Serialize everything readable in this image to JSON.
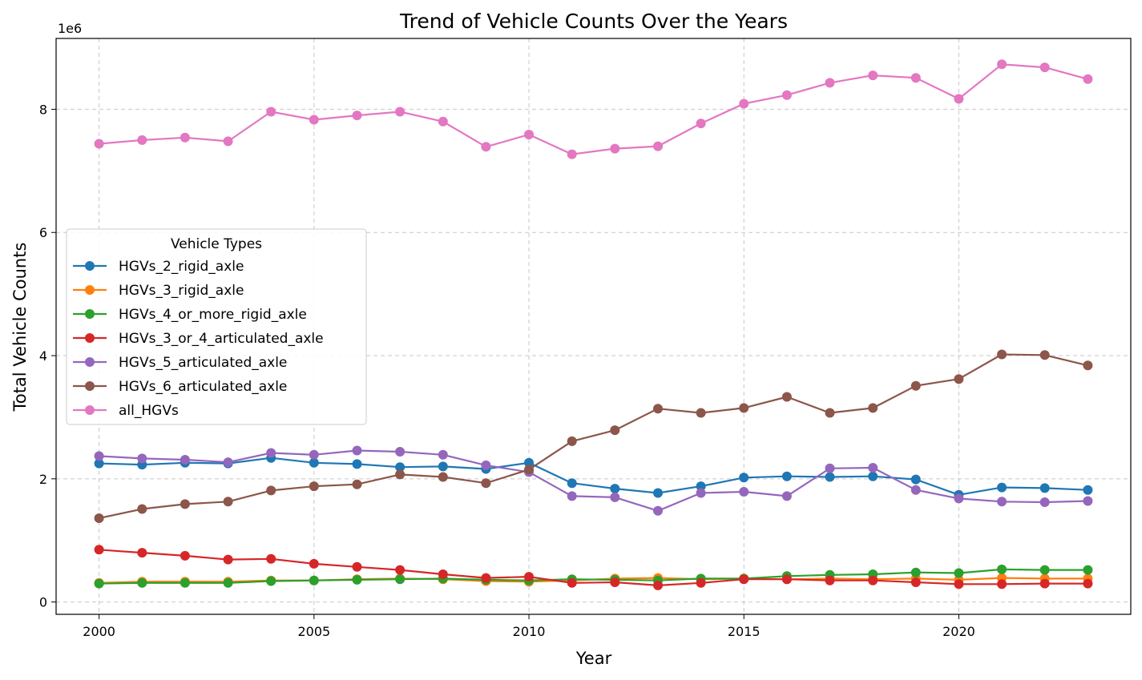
{
  "chart_data": {
    "type": "line",
    "title": "Trend of Vehicle Counts Over the Years",
    "xlabel": "Year",
    "ylabel": "Total Vehicle Counts",
    "y_offset_label": "1e6",
    "xlim": [
      1999,
      2024
    ],
    "ylim": [
      -200000,
      9150000
    ],
    "x_ticks": [
      2000,
      2005,
      2010,
      2015,
      2020
    ],
    "y_ticks": [
      0,
      2000000,
      4000000,
      6000000,
      8000000
    ],
    "y_tick_labels": [
      "0",
      "2",
      "4",
      "6",
      "8"
    ],
    "grid": true,
    "legend_title": "Vehicle Types",
    "legend_position": "center-left",
    "x": [
      2000,
      2001,
      2002,
      2003,
      2004,
      2005,
      2006,
      2007,
      2008,
      2009,
      2010,
      2011,
      2012,
      2013,
      2014,
      2015,
      2016,
      2017,
      2018,
      2019,
      2020,
      2021,
      2022,
      2023
    ],
    "series": [
      {
        "name": "HGVs_2_rigid_axle",
        "color": "#1f77b4",
        "values": [
          2250000,
          2230000,
          2260000,
          2250000,
          2340000,
          2260000,
          2240000,
          2190000,
          2200000,
          2160000,
          2260000,
          1930000,
          1840000,
          1770000,
          1880000,
          2020000,
          2040000,
          2030000,
          2040000,
          1990000,
          1740000,
          1860000,
          1850000,
          1820000
        ]
      },
      {
        "name": "HGVs_3_rigid_axle",
        "color": "#ff7f0e",
        "values": [
          310000,
          330000,
          330000,
          330000,
          350000,
          350000,
          370000,
          380000,
          370000,
          340000,
          330000,
          350000,
          380000,
          390000,
          370000,
          380000,
          370000,
          380000,
          370000,
          380000,
          360000,
          390000,
          380000,
          380000
        ]
      },
      {
        "name": "HGVs_4_or_more_rigid_axle",
        "color": "#2ca02c",
        "values": [
          300000,
          310000,
          310000,
          310000,
          340000,
          350000,
          360000,
          370000,
          380000,
          360000,
          350000,
          370000,
          360000,
          350000,
          380000,
          380000,
          420000,
          440000,
          450000,
          480000,
          470000,
          530000,
          520000,
          520000
        ]
      },
      {
        "name": "HGVs_3_or_4_articulated_axle",
        "color": "#d62728",
        "values": [
          850000,
          800000,
          750000,
          690000,
          700000,
          620000,
          570000,
          520000,
          450000,
          390000,
          410000,
          310000,
          320000,
          270000,
          310000,
          370000,
          370000,
          350000,
          350000,
          320000,
          290000,
          290000,
          300000,
          300000
        ]
      },
      {
        "name": "HGVs_5_articulated_axle",
        "color": "#9467bd",
        "values": [
          2370000,
          2330000,
          2310000,
          2270000,
          2420000,
          2390000,
          2460000,
          2440000,
          2390000,
          2220000,
          2110000,
          1720000,
          1700000,
          1480000,
          1770000,
          1790000,
          1720000,
          2170000,
          2180000,
          1820000,
          1680000,
          1630000,
          1620000,
          1640000
        ]
      },
      {
        "name": "HGVs_6_articulated_axle",
        "color": "#8c564b",
        "values": [
          1360000,
          1510000,
          1590000,
          1630000,
          1810000,
          1880000,
          1910000,
          2070000,
          2030000,
          1930000,
          2150000,
          2610000,
          2790000,
          3140000,
          3070000,
          3150000,
          3330000,
          3070000,
          3150000,
          3510000,
          3620000,
          4020000,
          4010000,
          3840000
        ]
      },
      {
        "name": "all_HGVs",
        "color": "#e377c2",
        "values": [
          7440000,
          7500000,
          7540000,
          7480000,
          7960000,
          7830000,
          7900000,
          7960000,
          7800000,
          7390000,
          7590000,
          7270000,
          7360000,
          7400000,
          7770000,
          8090000,
          8230000,
          8430000,
          8550000,
          8510000,
          8170000,
          8730000,
          8680000,
          8490000
        ]
      }
    ]
  }
}
